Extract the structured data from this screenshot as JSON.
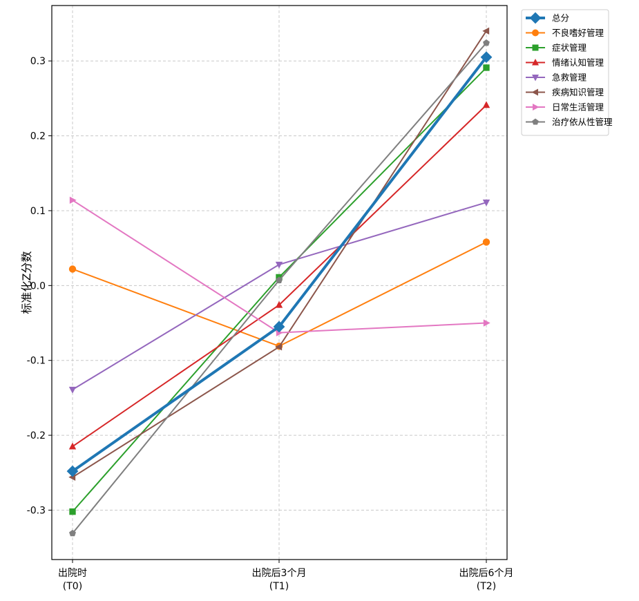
{
  "chart_data": {
    "type": "line",
    "title": "",
    "xlabel": "",
    "ylabel": "标准化Z分数",
    "categories": [
      [
        "出院时",
        "(T0)"
      ],
      [
        "出院后3个月",
        "(T1)"
      ],
      [
        "出院后6个月",
        "(T2)"
      ]
    ],
    "ylim": [
      -0.366,
      0.374
    ],
    "yticks": [
      -0.3,
      -0.2,
      -0.1,
      0.0,
      0.1,
      0.2,
      0.3
    ],
    "ytick_labels": [
      "-0.3",
      "-0.2",
      "-0.1",
      "0.0",
      "0.1",
      "0.2",
      "0.3"
    ],
    "grid": true,
    "legend_position": "outside top-right",
    "series": [
      {
        "name": "总分",
        "values": [
          -0.248,
          -0.055,
          0.305
        ],
        "color": "#1f77b4",
        "marker": "diamond",
        "emphasis": true
      },
      {
        "name": "不良嗜好管理",
        "values": [
          0.022,
          -0.081,
          0.058
        ],
        "color": "#ff7f0e",
        "marker": "circle"
      },
      {
        "name": "症状管理",
        "values": [
          -0.302,
          0.011,
          0.291
        ],
        "color": "#2ca02c",
        "marker": "square"
      },
      {
        "name": "情绪认知管理",
        "values": [
          -0.215,
          -0.026,
          0.241
        ],
        "color": "#d62728",
        "marker": "triangle-up"
      },
      {
        "name": "急救管理",
        "values": [
          -0.139,
          0.028,
          0.111
        ],
        "color": "#9467bd",
        "marker": "triangle-down"
      },
      {
        "name": "疾病知识管理",
        "values": [
          -0.256,
          -0.082,
          0.34
        ],
        "color": "#8c564b",
        "marker": "triangle-left"
      },
      {
        "name": "日常生活管理",
        "values": [
          0.114,
          -0.063,
          -0.05
        ],
        "color": "#e377c2",
        "marker": "triangle-right"
      },
      {
        "name": "治疗依从性管理",
        "values": [
          -0.331,
          0.007,
          0.324
        ],
        "color": "#7f7f7f",
        "marker": "pentagon"
      }
    ]
  }
}
